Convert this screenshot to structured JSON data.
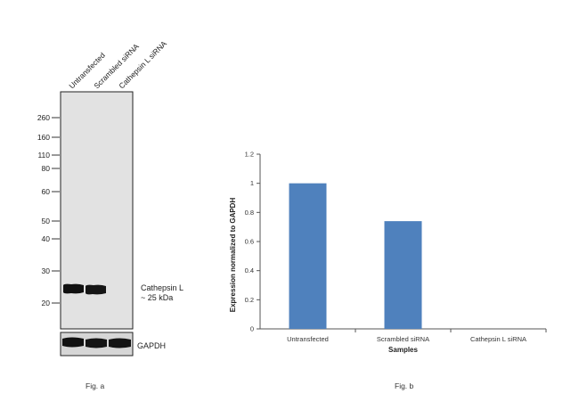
{
  "fig_a": {
    "caption": "Fig. a",
    "lanes": [
      "Untransfected",
      "Scrambled siRNA",
      "Cathepsin L siRNA"
    ],
    "markers": [
      "260",
      "160",
      "110",
      "80",
      "60",
      "50",
      "40",
      "30",
      "20"
    ],
    "band_label_line1": "Cathepsin L",
    "band_label_line2": "~ 25 kDa",
    "loading_control_label": "GAPDH"
  },
  "fig_b": {
    "caption": "Fig. b"
  },
  "chart_data": {
    "type": "bar",
    "categories": [
      "Untransfected",
      "Scrambled siRNA",
      "Cathepsin L siRNA"
    ],
    "values": [
      1.0,
      0.74,
      0.0
    ],
    "xlabel": "Samples",
    "ylabel": "Expression normalized to GAPDH",
    "ylim": [
      0,
      1.2
    ],
    "yticks": [
      "0",
      "0.2",
      "0.4",
      "0.6",
      "0.8",
      "1",
      "1.2"
    ],
    "bar_color": "#4f81bd",
    "grid": false,
    "legend": "none"
  }
}
